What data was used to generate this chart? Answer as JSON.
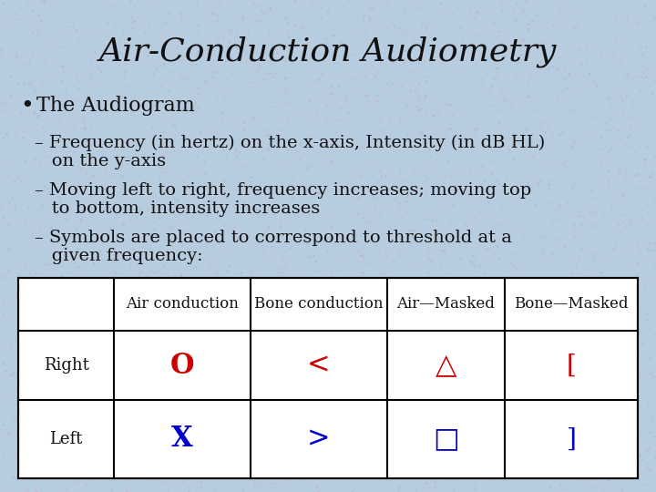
{
  "title": "Air-Conduction Audiometry",
  "title_fontsize": 26,
  "title_color": "#111111",
  "background_color": "#b8cce0",
  "bullet_header": "The Audiogram",
  "bullet1_line1": "– Frequency (in hertz) on the x-axis, Intensity (in dB HL)",
  "bullet1_line2": "   on the y-axis",
  "bullet2_line1": "– Moving left to right, frequency increases; moving top",
  "bullet2_line2": "   to bottom, intensity increases",
  "bullet3_line1": "– Symbols are placed to correspond to threshold at a",
  "bullet3_line2": "   given frequency:",
  "table_headers": [
    "",
    "Air conduction",
    "Bone conduction",
    "Air—Masked",
    "Bone—Masked"
  ],
  "table_rows": [
    [
      "Right",
      "O",
      "<",
      "△",
      "["
    ],
    [
      "Left",
      "X",
      ">",
      "□",
      "]"
    ]
  ],
  "right_color": "#cc0000",
  "left_color": "#0000cc",
  "text_color": "#111111",
  "body_fontsize": 14,
  "table_header_fontsize": 12,
  "table_label_fontsize": 13,
  "symbol_fontsize_large": 22,
  "symbol_fontsize_bracket": 20
}
